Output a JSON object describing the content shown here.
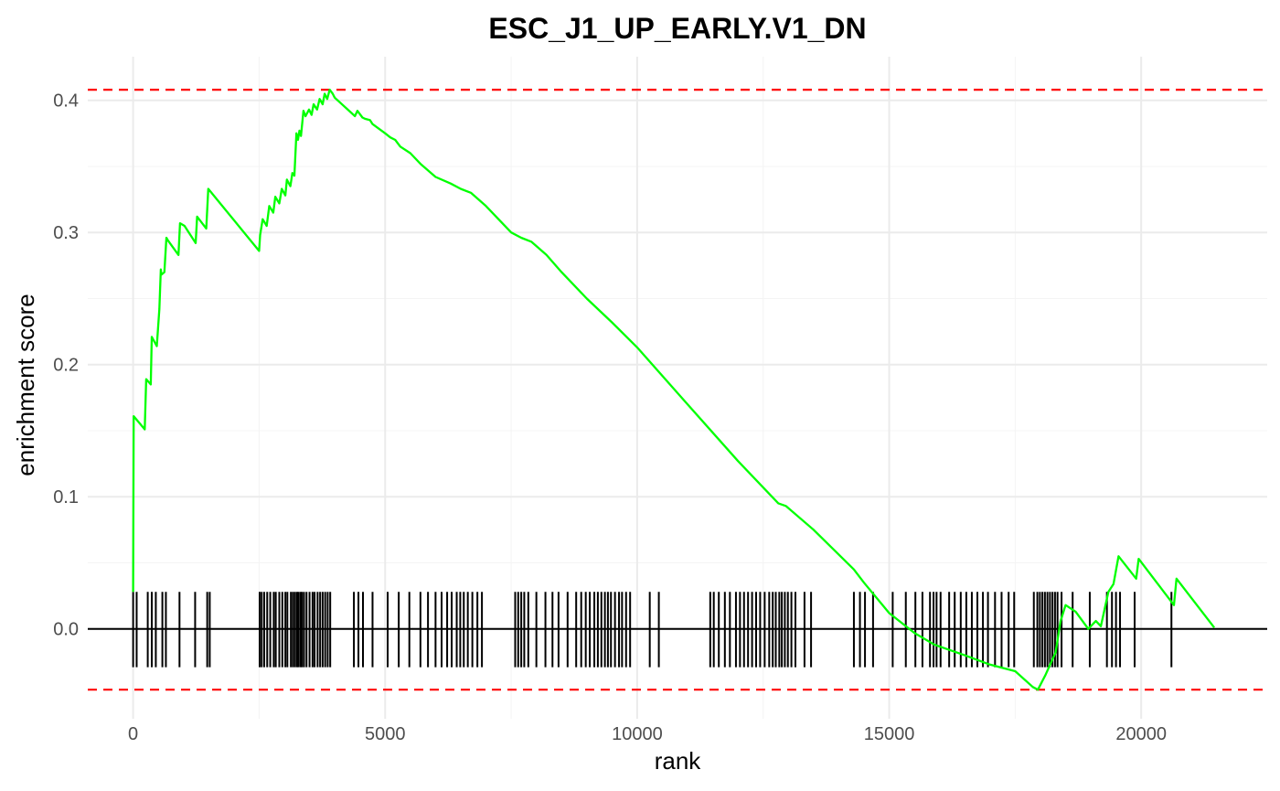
{
  "chart_data": {
    "type": "line",
    "title": "ESC_J1_UP_EARLY.V1_DN",
    "xlabel": "rank",
    "ylabel": "enrichment score",
    "xlim": [
      -900,
      22500
    ],
    "ylim": [
      -0.068,
      0.433
    ],
    "x_ticks": [
      0,
      5000,
      10000,
      15000,
      20000
    ],
    "y_ticks": [
      0.0,
      0.1,
      0.2,
      0.3,
      0.4
    ],
    "grid": true,
    "colors": {
      "curve": "#00ff00",
      "threshold": "#ff0000",
      "baseline": "#000000",
      "ticks": "#000000"
    },
    "thresholds": [
      0.408,
      -0.046
    ],
    "series": [
      {
        "x": [
          0,
          10,
          230,
          260,
          350,
          370,
          470,
          520,
          550,
          560,
          620,
          660,
          690,
          900,
          930,
          1020,
          1240,
          1270,
          1450,
          1490,
          2500,
          2520,
          2570,
          2650,
          2700,
          2780,
          2820,
          2900,
          2950,
          3020,
          3050,
          3120,
          3160,
          3200,
          3240,
          3270,
          3300,
          3330,
          3380,
          3420,
          3490,
          3540,
          3580,
          3650,
          3700,
          3760,
          3800,
          3850,
          3900,
          3960,
          4000,
          4400,
          4450,
          4550,
          4600,
          4700,
          4750,
          5000,
          5100,
          5200,
          5300,
          5500,
          5700,
          6000,
          6300,
          6500,
          6700,
          7000,
          7500,
          7700,
          7900,
          8200,
          8500,
          9000,
          9500,
          10000,
          11000,
          12000,
          12800,
          12950,
          13500,
          14300,
          14500,
          15000,
          15500,
          15900,
          16500,
          17000,
          17500,
          17850,
          17950,
          18100,
          18300,
          18400,
          18500,
          18700,
          18950,
          19100,
          19200,
          19350,
          19450,
          19550,
          19900,
          19950,
          20650,
          20700,
          21450
        ],
        "y": [
          0.028,
          0.161,
          0.151,
          0.189,
          0.185,
          0.221,
          0.214,
          0.242,
          0.272,
          0.268,
          0.27,
          0.296,
          0.294,
          0.283,
          0.307,
          0.305,
          0.292,
          0.312,
          0.303,
          0.333,
          0.286,
          0.298,
          0.31,
          0.305,
          0.32,
          0.315,
          0.327,
          0.322,
          0.333,
          0.328,
          0.34,
          0.335,
          0.345,
          0.343,
          0.375,
          0.37,
          0.377,
          0.373,
          0.392,
          0.388,
          0.393,
          0.389,
          0.397,
          0.393,
          0.401,
          0.397,
          0.405,
          0.401,
          0.408,
          0.405,
          0.402,
          0.388,
          0.392,
          0.387,
          0.386,
          0.385,
          0.382,
          0.375,
          0.372,
          0.37,
          0.365,
          0.36,
          0.352,
          0.342,
          0.337,
          0.333,
          0.33,
          0.32,
          0.3,
          0.296,
          0.293,
          0.283,
          0.27,
          0.25,
          0.232,
          0.213,
          0.17,
          0.127,
          0.095,
          0.093,
          0.075,
          0.045,
          0.035,
          0.012,
          -0.003,
          -0.012,
          -0.02,
          -0.027,
          -0.032,
          -0.044,
          -0.046,
          -0.035,
          -0.018,
          0.006,
          0.018,
          0.013,
          0.0,
          0.006,
          0.002,
          0.028,
          0.034,
          0.055,
          0.038,
          0.053,
          0.018,
          0.038,
          0.001
        ]
      }
    ],
    "hit_ranks": [
      0,
      70,
      290,
      370,
      450,
      580,
      650,
      920,
      1230,
      1470,
      1520,
      2510,
      2550,
      2600,
      2660,
      2720,
      2790,
      2830,
      2900,
      2960,
      3020,
      3060,
      3130,
      3170,
      3210,
      3250,
      3280,
      3320,
      3350,
      3390,
      3440,
      3500,
      3560,
      3600,
      3660,
      3710,
      3760,
      3810,
      3860,
      3910,
      4380,
      4470,
      4560,
      4750,
      5050,
      5270,
      5480,
      5700,
      5850,
      6000,
      6120,
      6230,
      6320,
      6420,
      6490,
      6560,
      6640,
      6730,
      6830,
      6920,
      7580,
      7640,
      7700,
      7760,
      7840,
      8000,
      8180,
      8320,
      8440,
      8620,
      8790,
      8890,
      8980,
      9060,
      9150,
      9220,
      9290,
      9360,
      9420,
      9480,
      9560,
      9640,
      9700,
      9780,
      9860,
      10250,
      10430,
      11450,
      11520,
      11620,
      11740,
      11840,
      11960,
      12040,
      12120,
      12200,
      12280,
      12360,
      12440,
      12530,
      12620,
      12690,
      12750,
      12820,
      12870,
      12930,
      12990,
      13060,
      13140,
      13320,
      13450,
      14300,
      14420,
      14520,
      14680,
      15070,
      15330,
      15520,
      15660,
      15810,
      15880,
      15940,
      16020,
      16190,
      16300,
      16420,
      16530,
      16640,
      16750,
      16860,
      16960,
      17100,
      17230,
      17370,
      17480,
      17870,
      17940,
      17990,
      18040,
      18090,
      18140,
      18190,
      18240,
      18290,
      18340,
      18420,
      18640,
      18980,
      19320,
      19420,
      19500,
      19580,
      19870,
      20600
    ],
    "hit_extent": [
      -0.029,
      0.028
    ]
  }
}
